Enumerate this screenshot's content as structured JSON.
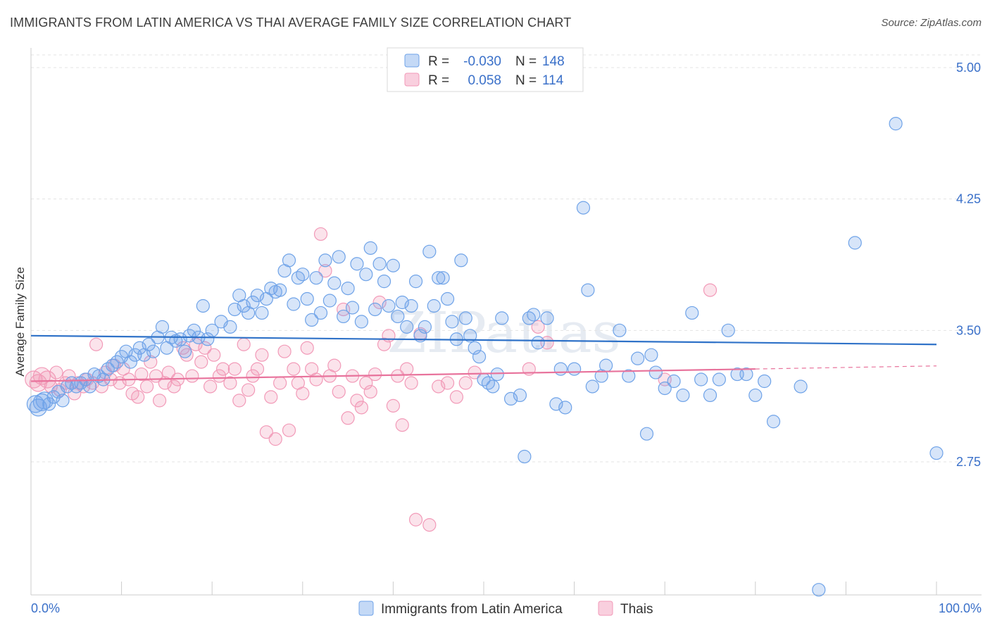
{
  "title": "IMMIGRANTS FROM LATIN AMERICA VS THAI AVERAGE FAMILY SIZE CORRELATION CHART",
  "source": "Source: ZipAtlas.com",
  "watermark": "ZIPatlas",
  "legend": {
    "row1": {
      "r_label": "R =",
      "r_value": "-0.030",
      "n_label": "N =",
      "n_value": "148"
    },
    "row2": {
      "r_label": "R =",
      "r_value": "0.058",
      "n_label": "N =",
      "n_value": "114"
    }
  },
  "chart_data": {
    "type": "scatter",
    "title": "IMMIGRANTS FROM LATIN AMERICA VS THAI AVERAGE FAMILY SIZE CORRELATION CHART",
    "xlabel": "",
    "ylabel": "Average Family Size",
    "xlim": [
      0,
      100
    ],
    "ylim": [
      2.0,
      5.07
    ],
    "x_tick_labels": [
      "0.0%",
      "100.0%"
    ],
    "y_ticks": [
      2.75,
      3.5,
      4.25,
      5.0
    ],
    "y_tick_labels": [
      "2.75",
      "3.50",
      "4.25",
      "5.00"
    ],
    "grid": "horizontal dashed",
    "legend_position": "top-center",
    "series": [
      {
        "name": "Immigrants from Latin America",
        "color": "#6fa3e8",
        "trend": {
          "x0": 0,
          "y0": 3.47,
          "x1": 100,
          "y1": 3.42
        },
        "points": [
          [
            0.5,
            3.08
          ],
          [
            0.8,
            3.06
          ],
          [
            1.2,
            3.09
          ],
          [
            1.5,
            3.1
          ],
          [
            2,
            3.08
          ],
          [
            2.5,
            3.12
          ],
          [
            3,
            3.15
          ],
          [
            3.5,
            3.1
          ],
          [
            4,
            3.18
          ],
          [
            4.5,
            3.2
          ],
          [
            5,
            3.18
          ],
          [
            5.5,
            3.2
          ],
          [
            6,
            3.22
          ],
          [
            6.5,
            3.18
          ],
          [
            7,
            3.25
          ],
          [
            7.5,
            3.24
          ],
          [
            8,
            3.22
          ],
          [
            8.5,
            3.28
          ],
          [
            9,
            3.3
          ],
          [
            9.5,
            3.32
          ],
          [
            10,
            3.35
          ],
          [
            10.5,
            3.38
          ],
          [
            11,
            3.32
          ],
          [
            11.5,
            3.36
          ],
          [
            12,
            3.4
          ],
          [
            12.5,
            3.36
          ],
          [
            13,
            3.42
          ],
          [
            13.5,
            3.38
          ],
          [
            14,
            3.46
          ],
          [
            14.5,
            3.52
          ],
          [
            15,
            3.4
          ],
          [
            15.5,
            3.46
          ],
          [
            16,
            3.44
          ],
          [
            16.5,
            3.45
          ],
          [
            17,
            3.38
          ],
          [
            17.5,
            3.47
          ],
          [
            18,
            3.5
          ],
          [
            18.5,
            3.46
          ],
          [
            19,
            3.64
          ],
          [
            19.5,
            3.45
          ],
          [
            20,
            3.5
          ],
          [
            21,
            3.55
          ],
          [
            22,
            3.52
          ],
          [
            22.5,
            3.62
          ],
          [
            23,
            3.7
          ],
          [
            23.5,
            3.64
          ],
          [
            24,
            3.6
          ],
          [
            24.5,
            3.66
          ],
          [
            25,
            3.7
          ],
          [
            25.5,
            3.6
          ],
          [
            26,
            3.68
          ],
          [
            26.5,
            3.74
          ],
          [
            27,
            3.72
          ],
          [
            27.5,
            3.73
          ],
          [
            28,
            3.84
          ],
          [
            28.5,
            3.9
          ],
          [
            29,
            3.65
          ],
          [
            29.5,
            3.8
          ],
          [
            30,
            3.82
          ],
          [
            30.5,
            3.68
          ],
          [
            31,
            3.56
          ],
          [
            31.5,
            3.8
          ],
          [
            32,
            3.6
          ],
          [
            32.5,
            3.9
          ],
          [
            33,
            3.67
          ],
          [
            33.5,
            3.77
          ],
          [
            34,
            3.92
          ],
          [
            34.5,
            3.58
          ],
          [
            35,
            3.74
          ],
          [
            35.5,
            3.63
          ],
          [
            36,
            3.88
          ],
          [
            36.5,
            3.55
          ],
          [
            37,
            3.82
          ],
          [
            37.5,
            3.97
          ],
          [
            38,
            3.62
          ],
          [
            38.5,
            3.88
          ],
          [
            39,
            3.78
          ],
          [
            39.5,
            3.64
          ],
          [
            40,
            3.87
          ],
          [
            40.5,
            3.58
          ],
          [
            41,
            3.66
          ],
          [
            41.5,
            3.52
          ],
          [
            42,
            3.64
          ],
          [
            42.5,
            3.78
          ],
          [
            43,
            3.47
          ],
          [
            43.5,
            3.52
          ],
          [
            44,
            3.95
          ],
          [
            44.5,
            3.64
          ],
          [
            45,
            3.8
          ],
          [
            45.5,
            3.8
          ],
          [
            46,
            3.68
          ],
          [
            46.5,
            3.55
          ],
          [
            47,
            3.45
          ],
          [
            47.5,
            3.9
          ],
          [
            48,
            3.57
          ],
          [
            48.5,
            3.47
          ],
          [
            49,
            3.4
          ],
          [
            49.5,
            3.35
          ],
          [
            50,
            3.22
          ],
          [
            50.5,
            3.2
          ],
          [
            51,
            3.18
          ],
          [
            51.5,
            3.25
          ],
          [
            52,
            3.57
          ],
          [
            53,
            3.11
          ],
          [
            54,
            3.13
          ],
          [
            54.5,
            2.78
          ],
          [
            55,
            3.57
          ],
          [
            55.5,
            3.59
          ],
          [
            56,
            3.43
          ],
          [
            57,
            3.57
          ],
          [
            58,
            3.08
          ],
          [
            58.5,
            3.28
          ],
          [
            59,
            3.06
          ],
          [
            60,
            3.28
          ],
          [
            61,
            4.2
          ],
          [
            61.5,
            3.73
          ],
          [
            62,
            3.18
          ],
          [
            63,
            3.24
          ],
          [
            63.5,
            3.3
          ],
          [
            65,
            3.5
          ],
          [
            66,
            3.24
          ],
          [
            67,
            3.34
          ],
          [
            68,
            2.91
          ],
          [
            68.5,
            3.36
          ],
          [
            69,
            3.26
          ],
          [
            70,
            3.17
          ],
          [
            71,
            3.21
          ],
          [
            72,
            3.13
          ],
          [
            73,
            3.6
          ],
          [
            74,
            3.22
          ],
          [
            75,
            3.13
          ],
          [
            76,
            3.22
          ],
          [
            77,
            3.5
          ],
          [
            78,
            3.25
          ],
          [
            79,
            3.25
          ],
          [
            80,
            3.13
          ],
          [
            81,
            3.21
          ],
          [
            82,
            2.98
          ],
          [
            85,
            3.18
          ],
          [
            87,
            2.02
          ],
          [
            91,
            4.0
          ],
          [
            95.5,
            4.68
          ],
          [
            100,
            2.8
          ]
        ]
      },
      {
        "name": "Thais",
        "color": "#f29ab8",
        "trend": {
          "x0": 0,
          "y0": 3.21,
          "x1": 80,
          "y1": 3.28
        },
        "points": [
          [
            0.3,
            3.22
          ],
          [
            0.8,
            3.2
          ],
          [
            1.2,
            3.24
          ],
          [
            1.8,
            3.22
          ],
          [
            2.2,
            3.18
          ],
          [
            2.8,
            3.26
          ],
          [
            3.2,
            3.16
          ],
          [
            3.8,
            3.2
          ],
          [
            4.2,
            3.24
          ],
          [
            4.8,
            3.14
          ],
          [
            5.2,
            3.2
          ],
          [
            5.8,
            3.18
          ],
          [
            6.2,
            3.22
          ],
          [
            6.8,
            3.2
          ],
          [
            7.2,
            3.42
          ],
          [
            7.8,
            3.18
          ],
          [
            8.2,
            3.26
          ],
          [
            8.8,
            3.22
          ],
          [
            9.2,
            3.3
          ],
          [
            9.8,
            3.2
          ],
          [
            10.2,
            3.28
          ],
          [
            10.8,
            3.22
          ],
          [
            11.2,
            3.14
          ],
          [
            11.8,
            3.12
          ],
          [
            12.2,
            3.25
          ],
          [
            12.8,
            3.18
          ],
          [
            13.2,
            3.32
          ],
          [
            13.8,
            3.24
          ],
          [
            14.2,
            3.1
          ],
          [
            14.8,
            3.2
          ],
          [
            15.2,
            3.26
          ],
          [
            15.8,
            3.18
          ],
          [
            16.2,
            3.22
          ],
          [
            16.8,
            3.4
          ],
          [
            17.2,
            3.36
          ],
          [
            17.8,
            3.24
          ],
          [
            18.2,
            3.42
          ],
          [
            18.8,
            3.32
          ],
          [
            19.2,
            3.4
          ],
          [
            19.8,
            3.18
          ],
          [
            20.2,
            3.36
          ],
          [
            20.8,
            3.24
          ],
          [
            21.2,
            3.28
          ],
          [
            22,
            3.2
          ],
          [
            22.5,
            3.28
          ],
          [
            23,
            3.1
          ],
          [
            23.5,
            3.42
          ],
          [
            24,
            3.16
          ],
          [
            24.5,
            3.24
          ],
          [
            25,
            3.28
          ],
          [
            25.5,
            3.36
          ],
          [
            26,
            2.92
          ],
          [
            26.5,
            3.12
          ],
          [
            27,
            2.88
          ],
          [
            27.5,
            3.2
          ],
          [
            28,
            3.38
          ],
          [
            28.5,
            2.93
          ],
          [
            29,
            3.28
          ],
          [
            29.5,
            3.2
          ],
          [
            30,
            3.14
          ],
          [
            30.5,
            3.4
          ],
          [
            31,
            3.28
          ],
          [
            31.5,
            3.22
          ],
          [
            32,
            4.05
          ],
          [
            32.5,
            3.84
          ],
          [
            33,
            3.24
          ],
          [
            33.5,
            3.3
          ],
          [
            34,
            3.15
          ],
          [
            34.5,
            3.62
          ],
          [
            35,
            3.0
          ],
          [
            35.5,
            3.24
          ],
          [
            36,
            3.1
          ],
          [
            36.5,
            3.06
          ],
          [
            37,
            3.2
          ],
          [
            37.5,
            3.15
          ],
          [
            38,
            3.25
          ],
          [
            38.5,
            3.66
          ],
          [
            39,
            3.42
          ],
          [
            39.5,
            3.47
          ],
          [
            40,
            3.07
          ],
          [
            40.5,
            3.24
          ],
          [
            41,
            2.96
          ],
          [
            41.5,
            3.28
          ],
          [
            42,
            3.2
          ],
          [
            42.5,
            2.42
          ],
          [
            43,
            3.48
          ],
          [
            44,
            2.39
          ],
          [
            45,
            3.18
          ],
          [
            46,
            3.2
          ],
          [
            47,
            3.12
          ],
          [
            48,
            3.2
          ],
          [
            49,
            3.26
          ],
          [
            55,
            3.28
          ],
          [
            56,
            3.52
          ],
          [
            57,
            3.43
          ],
          [
            70,
            3.22
          ],
          [
            75,
            3.73
          ]
        ]
      }
    ]
  },
  "bottom_legend": [
    {
      "label": "Immigrants from Latin America",
      "color": "#6fa3e8"
    },
    {
      "label": "Thais",
      "color": "#f29ab8"
    }
  ]
}
